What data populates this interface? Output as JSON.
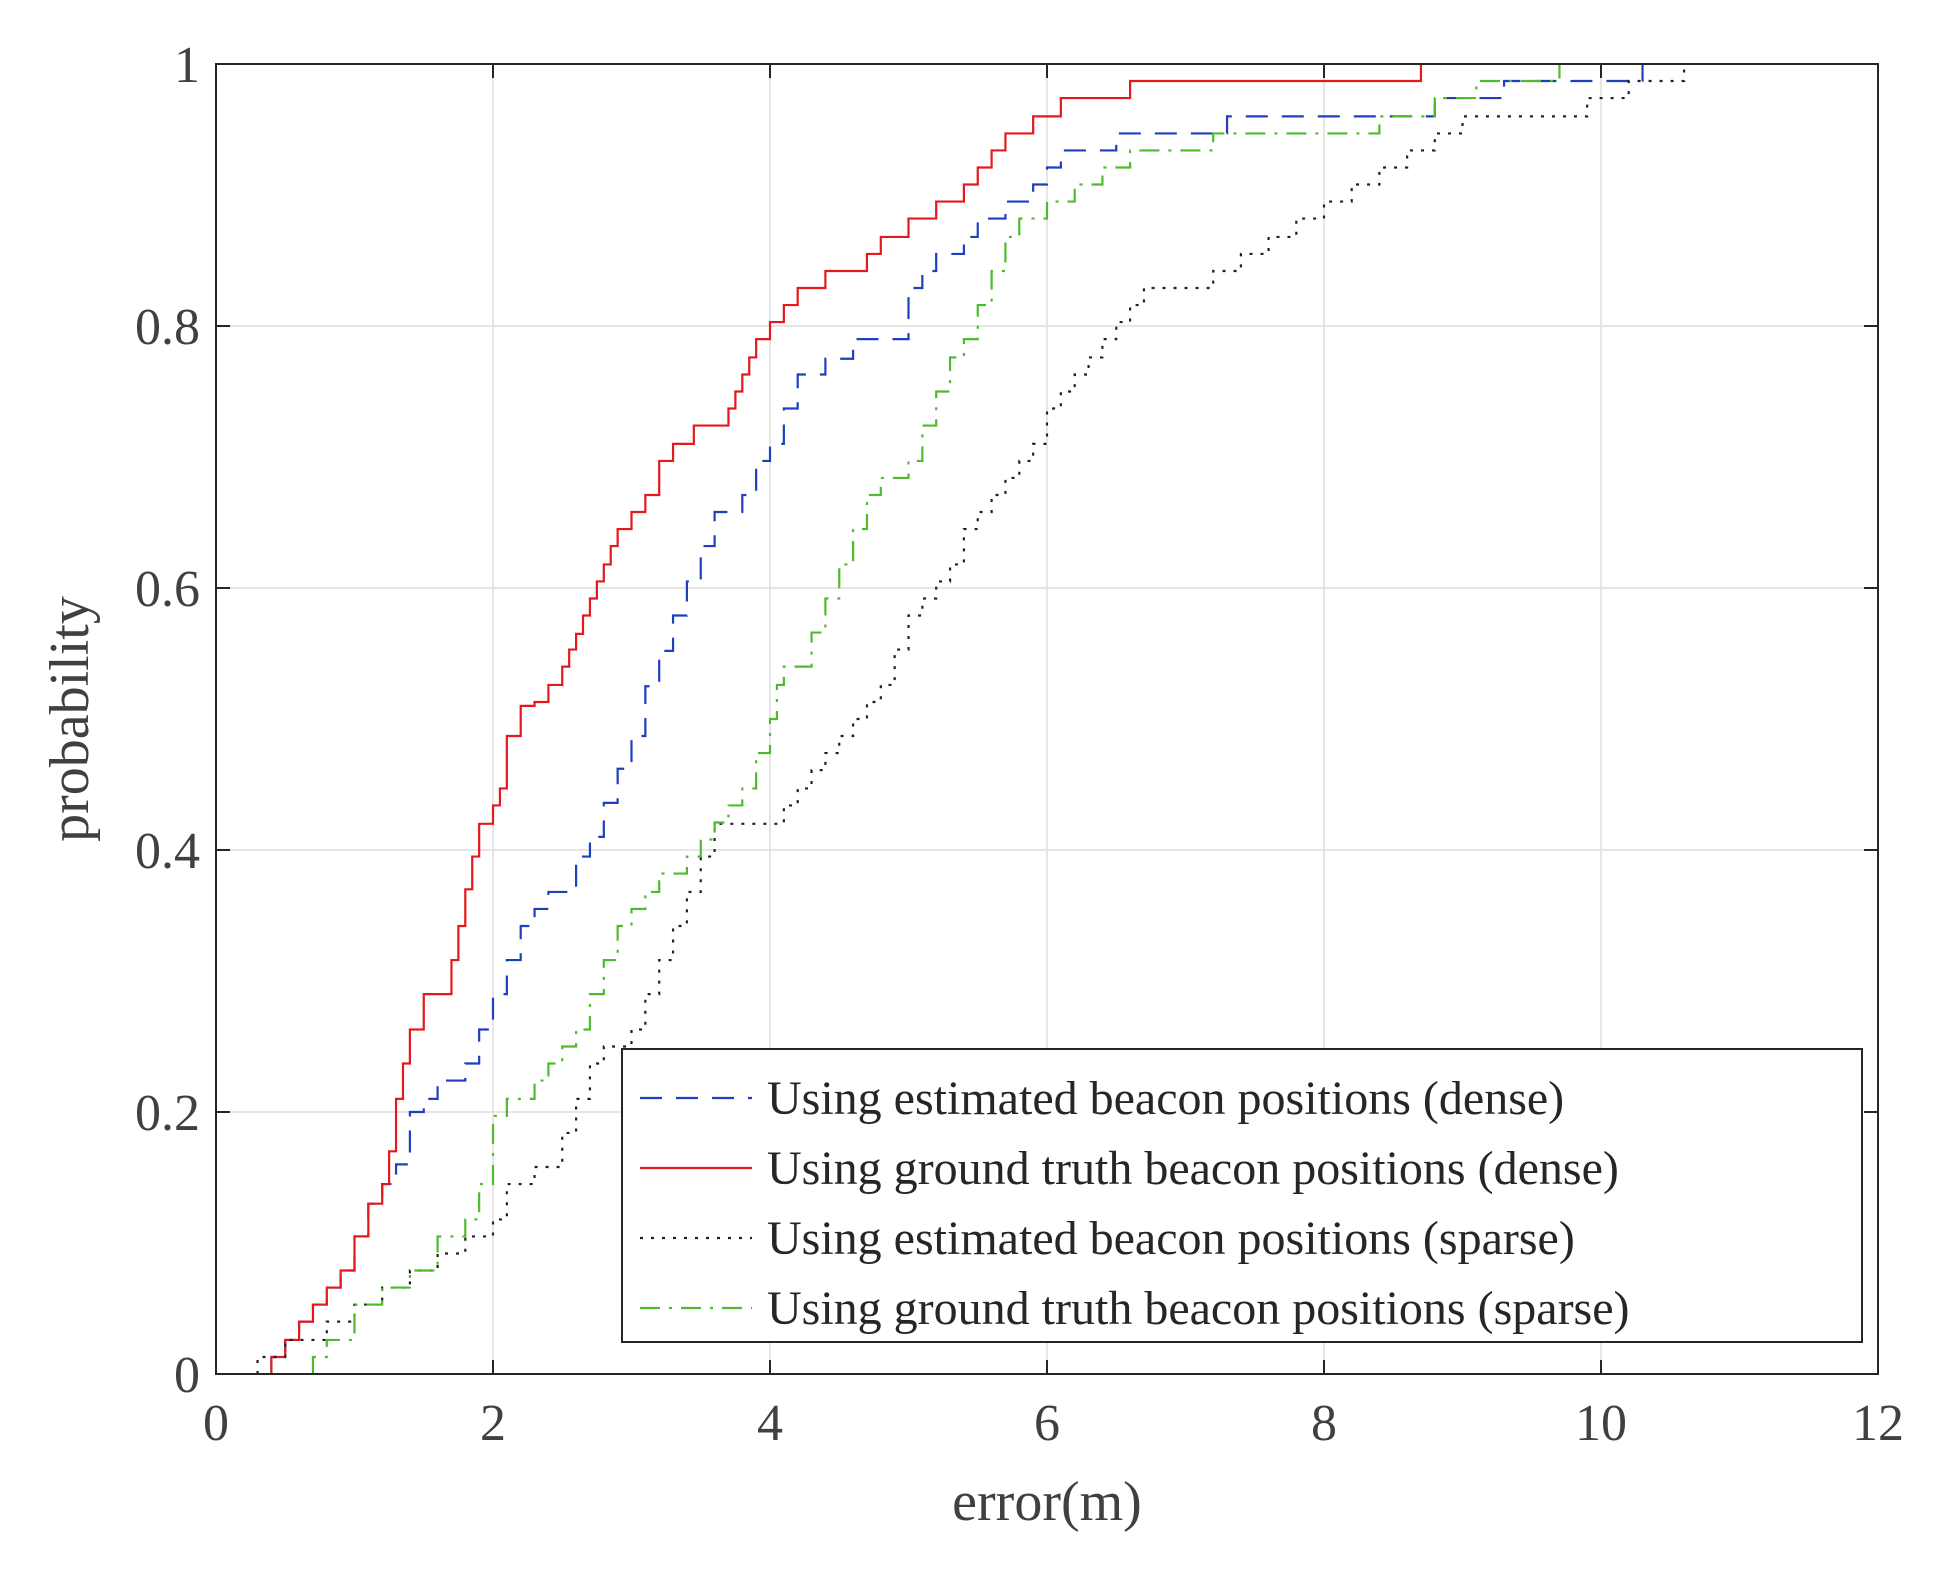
{
  "chart_data": {
    "type": "line",
    "title": "",
    "xlabel": "error(m)",
    "ylabel": "probability",
    "xlim": [
      0,
      12
    ],
    "ylim": [
      0,
      1
    ],
    "grid": true,
    "legend_position": "bottom-right",
    "x_ticks": [
      "0",
      "2",
      "4",
      "6",
      "8",
      "10",
      "12"
    ],
    "y_ticks": [
      "0",
      "0.2",
      "0.4",
      "0.6",
      "0.8",
      "1"
    ],
    "series": [
      {
        "name": "Using estimated beacon positions (dense)",
        "color": "#1f3fbf",
        "dash": "dashed",
        "x": [
          0.4,
          0.5,
          0.6,
          0.7,
          0.8,
          0.9,
          1.0,
          1.1,
          1.2,
          1.3,
          1.4,
          1.5,
          1.6,
          1.8,
          1.9,
          2.0,
          2.1,
          2.2,
          2.3,
          2.4,
          2.6,
          2.7,
          2.8,
          2.9,
          3.0,
          3.1,
          3.2,
          3.3,
          3.4,
          3.5,
          3.6,
          3.8,
          3.9,
          4.0,
          4.1,
          4.2,
          4.3,
          4.4,
          4.6,
          4.7,
          4.8,
          5.0,
          5.1,
          5.2,
          5.4,
          5.5,
          5.7,
          5.9,
          6.0,
          6.1,
          6.3,
          6.5,
          6.9,
          7.3,
          7.7,
          8.2,
          8.8,
          9.3,
          10.3
        ],
        "y": [
          0.013,
          0.026,
          0.04,
          0.053,
          0.066,
          0.079,
          0.105,
          0.13,
          0.145,
          0.16,
          0.2,
          0.21,
          0.224,
          0.237,
          0.263,
          0.29,
          0.316,
          0.342,
          0.355,
          0.368,
          0.395,
          0.41,
          0.436,
          0.462,
          0.487,
          0.525,
          0.552,
          0.579,
          0.605,
          0.632,
          0.658,
          0.671,
          0.697,
          0.71,
          0.737,
          0.763,
          0.763,
          0.775,
          0.79,
          0.79,
          0.79,
          0.829,
          0.842,
          0.855,
          0.868,
          0.882,
          0.895,
          0.908,
          0.921,
          0.934,
          0.934,
          0.947,
          0.947,
          0.96,
          0.96,
          0.96,
          0.974,
          0.987,
          1.0
        ]
      },
      {
        "name": "Using ground truth beacon positions (dense)",
        "color": "#e5191d",
        "dash": "solid",
        "x": [
          0.4,
          0.5,
          0.6,
          0.7,
          0.8,
          0.9,
          1.0,
          1.1,
          1.2,
          1.25,
          1.3,
          1.35,
          1.4,
          1.5,
          1.6,
          1.7,
          1.75,
          1.8,
          1.85,
          1.9,
          2.0,
          2.05,
          2.1,
          2.2,
          2.3,
          2.4,
          2.5,
          2.55,
          2.6,
          2.65,
          2.7,
          2.75,
          2.8,
          2.85,
          2.9,
          3.0,
          3.1,
          3.2,
          3.3,
          3.45,
          3.6,
          3.7,
          3.75,
          3.8,
          3.85,
          3.9,
          4.0,
          4.1,
          4.2,
          4.4,
          4.6,
          4.7,
          4.8,
          4.9,
          5.0,
          5.2,
          5.4,
          5.5,
          5.6,
          5.7,
          5.9,
          6.1,
          6.3,
          6.6,
          7.5,
          8.7
        ],
        "y": [
          0.013,
          0.026,
          0.04,
          0.053,
          0.066,
          0.079,
          0.105,
          0.13,
          0.145,
          0.17,
          0.21,
          0.237,
          0.263,
          0.29,
          0.29,
          0.316,
          0.342,
          0.37,
          0.395,
          0.42,
          0.434,
          0.447,
          0.487,
          0.51,
          0.513,
          0.526,
          0.54,
          0.553,
          0.565,
          0.579,
          0.592,
          0.605,
          0.618,
          0.632,
          0.645,
          0.658,
          0.671,
          0.697,
          0.71,
          0.724,
          0.724,
          0.737,
          0.75,
          0.763,
          0.776,
          0.79,
          0.803,
          0.816,
          0.829,
          0.842,
          0.842,
          0.855,
          0.868,
          0.868,
          0.882,
          0.895,
          0.908,
          0.921,
          0.934,
          0.947,
          0.96,
          0.974,
          0.974,
          0.987,
          0.987,
          1.0
        ]
      },
      {
        "name": "Using estimated beacon positions (sparse)",
        "color": "#202020",
        "dash": "dotted",
        "x": [
          0.3,
          0.5,
          0.8,
          1.0,
          1.2,
          1.4,
          1.6,
          1.8,
          2.0,
          2.1,
          2.3,
          2.5,
          2.6,
          2.7,
          2.8,
          3.0,
          3.1,
          3.2,
          3.3,
          3.4,
          3.5,
          3.6,
          3.8,
          4.0,
          4.1,
          4.2,
          4.3,
          4.4,
          4.5,
          4.6,
          4.7,
          4.8,
          4.9,
          5.0,
          5.1,
          5.2,
          5.3,
          5.4,
          5.5,
          5.6,
          5.7,
          5.8,
          5.9,
          6.0,
          6.1,
          6.2,
          6.3,
          6.4,
          6.5,
          6.6,
          6.7,
          6.9,
          7.2,
          7.4,
          7.6,
          7.8,
          8.0,
          8.2,
          8.4,
          8.6,
          8.8,
          9.0,
          9.2,
          9.6,
          9.9,
          10.2,
          10.6
        ],
        "y": [
          0.013,
          0.026,
          0.04,
          0.053,
          0.066,
          0.079,
          0.092,
          0.105,
          0.118,
          0.145,
          0.158,
          0.184,
          0.21,
          0.237,
          0.25,
          0.263,
          0.29,
          0.316,
          0.342,
          0.368,
          0.395,
          0.42,
          0.42,
          0.42,
          0.434,
          0.447,
          0.461,
          0.474,
          0.487,
          0.5,
          0.513,
          0.526,
          0.553,
          0.579,
          0.592,
          0.605,
          0.618,
          0.645,
          0.658,
          0.671,
          0.684,
          0.697,
          0.71,
          0.737,
          0.75,
          0.763,
          0.776,
          0.79,
          0.803,
          0.816,
          0.829,
          0.829,
          0.842,
          0.855,
          0.868,
          0.882,
          0.895,
          0.908,
          0.921,
          0.934,
          0.947,
          0.96,
          0.96,
          0.96,
          0.974,
          0.987,
          1.0
        ]
      },
      {
        "name": "Using ground truth beacon positions (sparse)",
        "color": "#4dbb2d",
        "dash": "dashdot",
        "x": [
          0.7,
          0.8,
          1.0,
          1.2,
          1.4,
          1.6,
          1.8,
          1.9,
          2.0,
          2.1,
          2.3,
          2.4,
          2.5,
          2.6,
          2.7,
          2.8,
          2.9,
          3.0,
          3.1,
          3.2,
          3.4,
          3.5,
          3.6,
          3.7,
          3.8,
          3.9,
          4.0,
          4.05,
          4.1,
          4.3,
          4.4,
          4.5,
          4.6,
          4.7,
          4.8,
          5.0,
          5.1,
          5.2,
          5.3,
          5.4,
          5.5,
          5.6,
          5.7,
          5.8,
          6.0,
          6.2,
          6.4,
          6.6,
          6.9,
          7.2,
          7.8,
          8.4,
          8.8,
          9.1,
          9.7
        ],
        "y": [
          0.013,
          0.026,
          0.053,
          0.066,
          0.079,
          0.105,
          0.118,
          0.145,
          0.197,
          0.21,
          0.224,
          0.237,
          0.25,
          0.263,
          0.29,
          0.316,
          0.342,
          0.355,
          0.368,
          0.382,
          0.395,
          0.408,
          0.421,
          0.434,
          0.447,
          0.474,
          0.5,
          0.526,
          0.54,
          0.566,
          0.592,
          0.618,
          0.645,
          0.671,
          0.684,
          0.697,
          0.724,
          0.75,
          0.776,
          0.79,
          0.816,
          0.842,
          0.868,
          0.882,
          0.895,
          0.908,
          0.921,
          0.934,
          0.934,
          0.947,
          0.947,
          0.96,
          0.974,
          0.987,
          1.0
        ]
      }
    ]
  }
}
